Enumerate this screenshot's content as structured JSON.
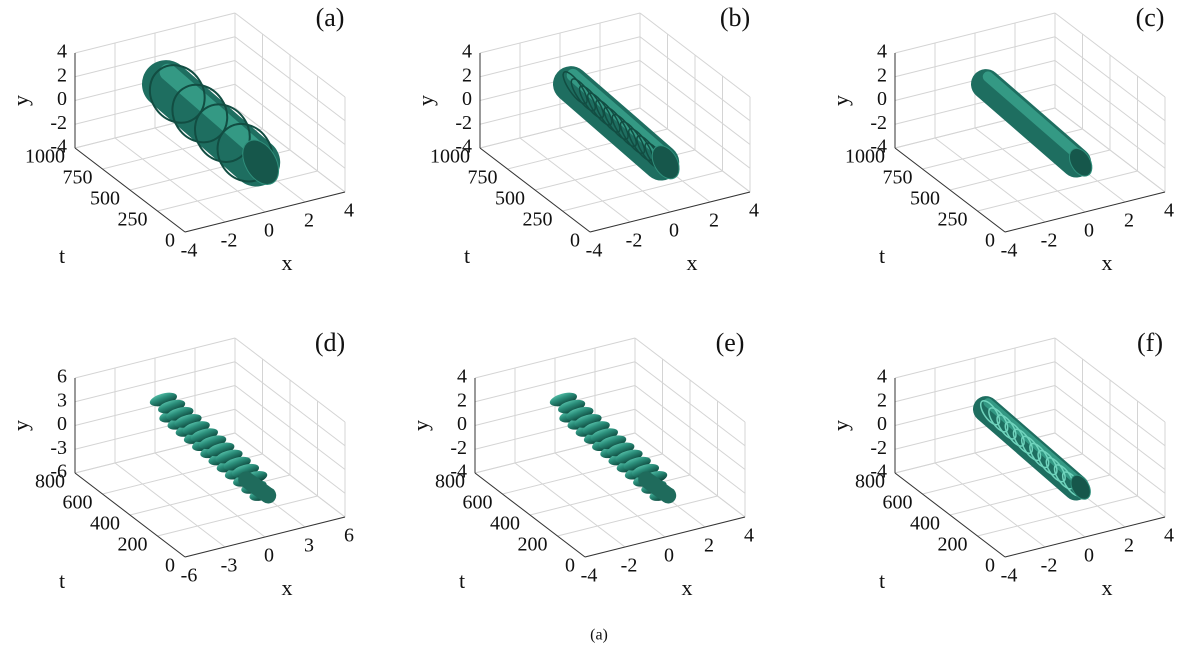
{
  "panels": [
    {
      "label": "(a)",
      "y_label": "y",
      "t_label": "t",
      "x_label": "x",
      "y_ticks": [
        "4",
        "2",
        "0",
        "-2",
        "-4"
      ],
      "t_ticks": [
        "1000",
        "750",
        "500",
        "250",
        "0"
      ],
      "x_ticks": [
        "-4",
        "-2",
        "0",
        "2",
        "4"
      ]
    },
    {
      "label": "(b)",
      "y_label": "y",
      "t_label": "t",
      "x_label": "x",
      "y_ticks": [
        "4",
        "2",
        "0",
        "-2",
        "-4"
      ],
      "t_ticks": [
        "1000",
        "750",
        "500",
        "250",
        "0"
      ],
      "x_ticks": [
        "-4",
        "-2",
        "0",
        "2",
        "4"
      ]
    },
    {
      "label": "(c)",
      "y_label": "y",
      "t_label": "t",
      "x_label": "x",
      "y_ticks": [
        "4",
        "2",
        "0",
        "-2",
        "-4"
      ],
      "t_ticks": [
        "1000",
        "750",
        "500",
        "250",
        "0"
      ],
      "x_ticks": [
        "-4",
        "-2",
        "0",
        "2",
        "4"
      ]
    },
    {
      "label": "(d)",
      "y_label": "y",
      "t_label": "t",
      "x_label": "x",
      "y_ticks": [
        "6",
        "3",
        "0",
        "-3",
        "-6"
      ],
      "t_ticks": [
        "800",
        "600",
        "400",
        "200",
        "0"
      ],
      "x_ticks": [
        "-6",
        "-3",
        "0",
        "3",
        "6"
      ]
    },
    {
      "label": "(e)",
      "y_label": "y",
      "t_label": "t",
      "x_label": "x",
      "y_ticks": [
        "4",
        "2",
        "0",
        "-2",
        "-4"
      ],
      "t_ticks": [
        "800",
        "600",
        "400",
        "200",
        "0"
      ],
      "x_ticks": [
        "-4",
        "-2",
        "0",
        "2",
        "4"
      ]
    },
    {
      "label": "(f)",
      "y_label": "y",
      "t_label": "t",
      "x_label": "x",
      "y_ticks": [
        "4",
        "2",
        "0",
        "-2",
        "-4"
      ],
      "t_ticks": [
        "800",
        "600",
        "400",
        "200",
        "0"
      ],
      "x_ticks": [
        "-4",
        "-2",
        "0",
        "2",
        "4"
      ]
    }
  ],
  "caption": "(a)"
}
